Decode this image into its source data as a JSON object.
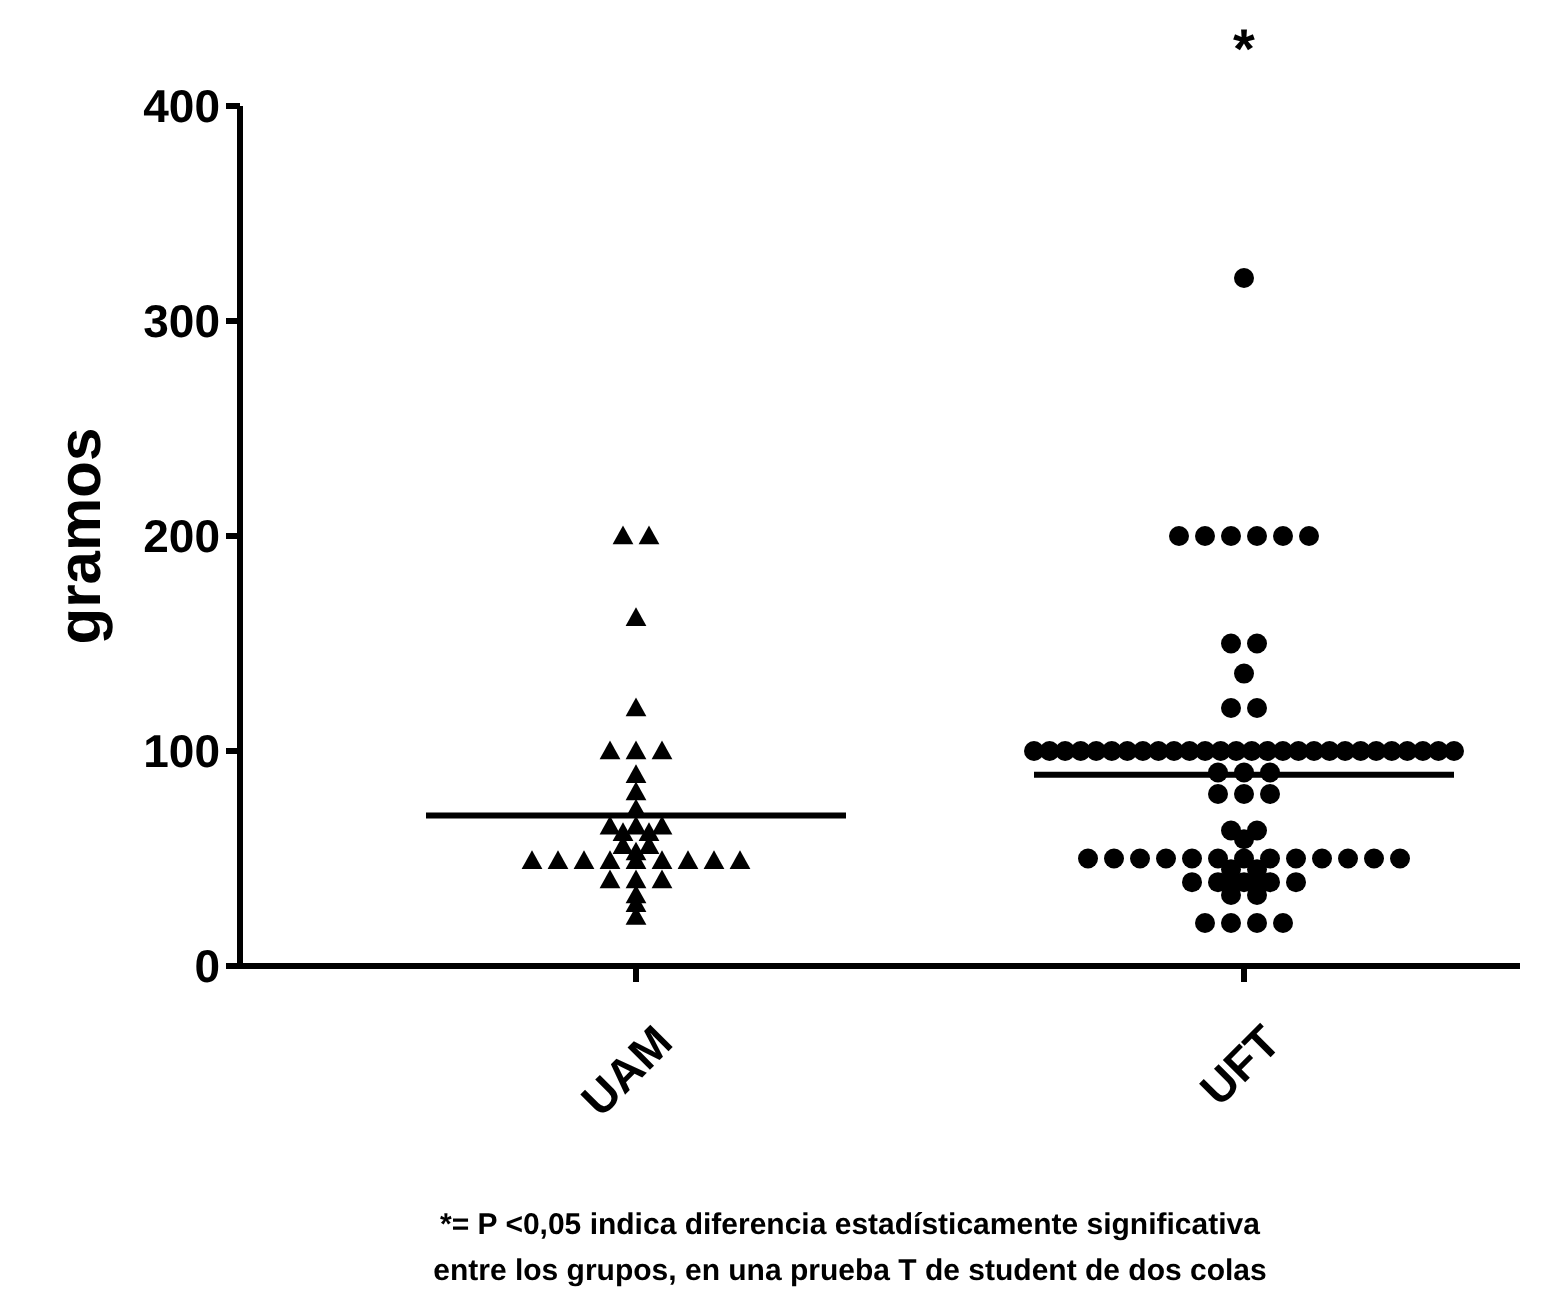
{
  "chart_data": {
    "type": "scatter",
    "ylabel": "gramos",
    "categories": [
      "UAM",
      "UFT"
    ],
    "ylim": [
      0,
      400
    ],
    "yticks": [
      0,
      100,
      200,
      300,
      400
    ],
    "grid": false,
    "legend": false,
    "series": [
      {
        "marker": "triangle",
        "color": "#000000",
        "x": [
          "UAM",
          "UAM",
          "UAM",
          "UAM",
          "UAM",
          "UAM",
          "UAM",
          "UAM",
          "UAM",
          "UAM",
          "UAM",
          "UAM",
          "UAM",
          "UAM",
          "UAM",
          "UAM",
          "UAM",
          "UAM",
          "UAM",
          "UAM",
          "UAM",
          "UAM",
          "UAM",
          "UAM",
          "UAM",
          "UAM",
          "UAM",
          "UAM",
          "UAM",
          "UAM",
          "UAM",
          "UAM",
          "UAM"
        ],
        "values": [
          200,
          200,
          162,
          120,
          100,
          100,
          100,
          89,
          81,
          73,
          65,
          65,
          65,
          62,
          62,
          56,
          56,
          53,
          49,
          49,
          49,
          49,
          49,
          49,
          49,
          49,
          49,
          40,
          40,
          40,
          33,
          29,
          23
        ]
      },
      {
        "marker": "circle",
        "color": "#000000",
        "x": [
          "UFT",
          "UFT",
          "UFT",
          "UFT",
          "UFT",
          "UFT",
          "UFT",
          "UFT",
          "UFT",
          "UFT",
          "UFT",
          "UFT",
          "UFT",
          "UFT",
          "UFT",
          "UFT",
          "UFT",
          "UFT",
          "UFT",
          "UFT",
          "UFT",
          "UFT",
          "UFT",
          "UFT",
          "UFT",
          "UFT",
          "UFT",
          "UFT",
          "UFT",
          "UFT",
          "UFT",
          "UFT",
          "UFT",
          "UFT",
          "UFT",
          "UFT",
          "UFT",
          "UFT",
          "UFT",
          "UFT",
          "UFT",
          "UFT",
          "UFT",
          "UFT",
          "UFT",
          "UFT",
          "UFT",
          "UFT",
          "UFT",
          "UFT",
          "UFT",
          "UFT",
          "UFT",
          "UFT",
          "UFT",
          "UFT",
          "UFT",
          "UFT",
          "UFT",
          "UFT",
          "UFT",
          "UFT",
          "UFT",
          "UFT",
          "UFT",
          "UFT",
          "UFT",
          "UFT",
          "UFT",
          "UFT",
          "UFT",
          "UFT",
          "UFT",
          "UFT",
          "UFT",
          "UFT",
          "UFT"
        ],
        "values": [
          320,
          200,
          200,
          200,
          200,
          200,
          200,
          150,
          150,
          136,
          120,
          120,
          100,
          100,
          100,
          100,
          100,
          100,
          100,
          100,
          100,
          100,
          100,
          100,
          100,
          100,
          100,
          100,
          100,
          100,
          100,
          100,
          100,
          100,
          100,
          100,
          100,
          100,
          100,
          100,
          90,
          90,
          90,
          80,
          80,
          80,
          63,
          63,
          59,
          50,
          50,
          50,
          50,
          50,
          50,
          50,
          50,
          50,
          50,
          50,
          50,
          50,
          45,
          45,
          40,
          40,
          39,
          39,
          39,
          39,
          39,
          33,
          33,
          20,
          20,
          20,
          20
        ]
      },
      {
        "type": "box",
        "color": "#000000",
        "boxes": [
          {
            "low": 70,
            "q1": 70,
            "median": 70,
            "q3": 70,
            "high": 70
          },
          {
            "low": 89,
            "q1": 89,
            "median": 89,
            "q3": 89,
            "high": 89
          }
        ]
      }
    ],
    "annotations": [
      "*",
      "*= P <0,05 indica diferencia estadísticamente significativa\nentre los grupos, en una prueba T de student de dos colas"
    ]
  }
}
